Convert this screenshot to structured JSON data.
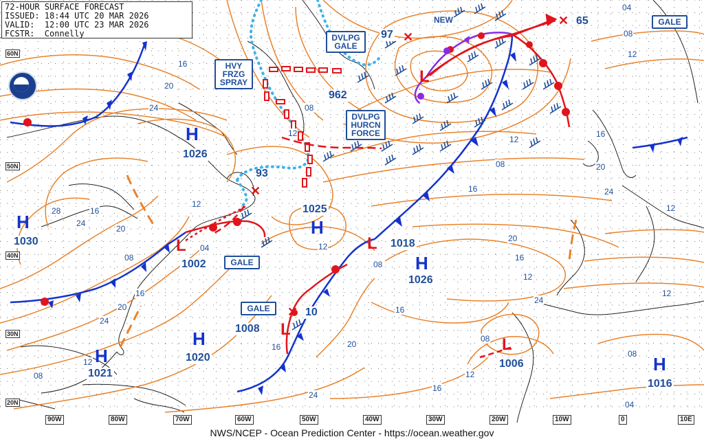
{
  "header": {
    "line1": "72-HOUR SURFACE FORECAST",
    "line2": "ISSUED: 18:44 UTC 20 MAR 2026",
    "line3": "VALID:  12:00 UTC 23 MAR 2026",
    "line4": "FCSTR:  Connelly"
  },
  "footer": "NWS/NCEP - Ocean Prediction Center - https://ocean.weather.gov",
  "logo": {
    "icon": "noaa-logo"
  },
  "lat_labels": [
    "60N",
    "50N",
    "40N",
    "30N",
    "20N"
  ],
  "lon_labels": [
    "90W",
    "80W",
    "70W",
    "60W",
    "50W",
    "40W",
    "30W",
    "20W",
    "10W",
    "0",
    "10E"
  ],
  "highs": [
    {
      "letter": "H",
      "pressure": "1026"
    },
    {
      "letter": "H",
      "pressure": "1030"
    },
    {
      "letter": "H",
      "pressure": "1025"
    },
    {
      "letter": "H",
      "pressure": "1026"
    },
    {
      "letter": "H",
      "pressure": "1020"
    },
    {
      "letter": "H",
      "pressure": "1021"
    },
    {
      "letter": "H",
      "pressure": "1016"
    }
  ],
  "lows": [
    {
      "pressure": "962"
    },
    {
      "pressure": "1002"
    },
    {
      "pressure": "1018"
    },
    {
      "pressure": "1008"
    },
    {
      "pressure": "1006"
    }
  ],
  "aux_numbers": [
    "97",
    "65",
    "93",
    "10"
  ],
  "warning_labels": {
    "hvy_frzg_spray": [
      "HVY",
      "FRZG",
      "SPRAY"
    ],
    "dvlpg_gale": [
      "DVLPG",
      "GALE"
    ],
    "dvlpg_hurcn_force": [
      "DVLPG",
      "HURCN",
      "FORCE"
    ],
    "gale_ne": "GALE",
    "gale_mid": "GALE",
    "gale_sw": "GALE",
    "new": "NEW"
  },
  "isobar_labels": [
    "04",
    "08",
    "12",
    "16",
    "20",
    "24",
    "28",
    "16",
    "20",
    "24",
    "12",
    "08",
    "04",
    "08",
    "12",
    "16",
    "20",
    "24",
    "12",
    "08",
    "16",
    "20",
    "24",
    "16",
    "12",
    "08",
    "08",
    "12",
    "16",
    "12",
    "16",
    "20",
    "24",
    "16",
    "12",
    "08",
    "04",
    "08",
    "12",
    "24",
    "20",
    "16",
    "12"
  ],
  "colors": {
    "isobar": "#e8822a",
    "cold_front": "#1433cc",
    "warm_front": "#e0151b",
    "occluded_front": "#8a2be2",
    "ice_edge": "#3fb2ea",
    "land": "#222222",
    "label": "#1f4e9a"
  }
}
